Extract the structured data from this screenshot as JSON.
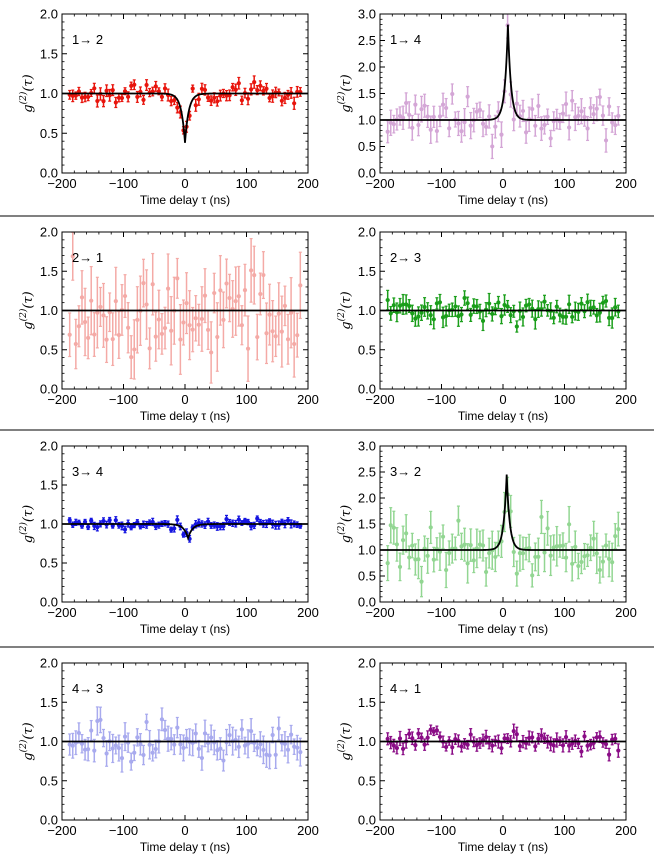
{
  "figure": {
    "ylabel_parts": [
      "g",
      "(2)",
      "(τ)"
    ],
    "xlabel": "Time delay τ (ns)"
  },
  "chart_data": [
    {
      "type": "scatter",
      "panel_label": "1→ 2",
      "color": "#e8140c",
      "ylim": [
        0,
        2
      ],
      "yticks": [
        "0.0",
        "0.5",
        "1.0",
        "1.5",
        "2.0"
      ],
      "xlim": [
        -200,
        200
      ],
      "xticks": [
        "−200",
        "−100",
        "0",
        "100",
        "200"
      ],
      "xlabel": "Time delay τ (ns)",
      "fit": {
        "kind": "dip",
        "baseline": 1.0,
        "amplitude": 0.62,
        "center": 0,
        "width": 6
      },
      "noise": 0.06,
      "errorbar": 0.06,
      "seed": 11
    },
    {
      "type": "scatter",
      "panel_label": "1→ 4",
      "color": "#d4a6d6",
      "ylim": [
        0,
        3
      ],
      "yticks": [
        "0.0",
        "0.5",
        "1.0",
        "1.5",
        "2.0",
        "2.5",
        "3.0"
      ],
      "xlim": [
        -200,
        200
      ],
      "xticks": [
        "−200",
        "−100",
        "0",
        "100",
        "200"
      ],
      "xlabel": "Time delay τ (ns)",
      "fit": {
        "kind": "peak",
        "baseline": 1.0,
        "amplitude": 1.8,
        "center": 8,
        "width": 5
      },
      "noise": 0.2,
      "errorbar": 0.2,
      "seed": 23
    },
    {
      "type": "scatter",
      "panel_label": "2→ 1",
      "color": "#f4aaa6",
      "ylim": [
        0,
        2
      ],
      "yticks": [
        "0.0",
        "0.5",
        "1.0",
        "1.5",
        "2.0"
      ],
      "xlim": [
        -200,
        200
      ],
      "xticks": [
        "−200",
        "−100",
        "0",
        "100",
        "200"
      ],
      "xlabel": "Time delay τ (ns)",
      "fit": {
        "kind": "flat",
        "baseline": 1.0
      },
      "noise": 0.28,
      "errorbar": 0.35,
      "seed": 37
    },
    {
      "type": "scatter",
      "panel_label": "2→ 3",
      "color": "#1a9e1a",
      "ylim": [
        0,
        2
      ],
      "yticks": [
        "0.0",
        "0.5",
        "1.0",
        "1.5",
        "2.0"
      ],
      "xlim": [
        -200,
        200
      ],
      "xticks": [
        "−200",
        "−100",
        "0",
        "100",
        "200"
      ],
      "xlabel": "Time delay τ (ns)",
      "fit": {
        "kind": "flat",
        "baseline": 1.0
      },
      "noise": 0.08,
      "errorbar": 0.1,
      "seed": 41
    },
    {
      "type": "scatter",
      "panel_label": "3→ 4",
      "color": "#1414e0",
      "ylim": [
        0,
        2
      ],
      "yticks": [
        "0.0",
        "0.5",
        "1.0",
        "1.5",
        "2.0"
      ],
      "xlim": [
        -200,
        200
      ],
      "xticks": [
        "−200",
        "−100",
        "0",
        "100",
        "200"
      ],
      "xlabel": "Time delay τ (ns)",
      "fit": {
        "kind": "dip",
        "baseline": 1.0,
        "amplitude": 0.18,
        "center": 5,
        "width": 7
      },
      "noise": 0.035,
      "errorbar": 0.04,
      "seed": 53
    },
    {
      "type": "scatter",
      "panel_label": "3→ 2",
      "color": "#92d692",
      "ylim": [
        0,
        3
      ],
      "yticks": [
        "0.0",
        "0.5",
        "1.0",
        "1.5",
        "2.0",
        "2.5",
        "3.0"
      ],
      "xlim": [
        -200,
        200
      ],
      "xticks": [
        "−200",
        "−100",
        "0",
        "100",
        "200"
      ],
      "xlabel": "Time delay τ (ns)",
      "fit": {
        "kind": "peak",
        "baseline": 1.0,
        "amplitude": 1.45,
        "center": 6,
        "width": 5
      },
      "noise": 0.25,
      "errorbar": 0.3,
      "seed": 67
    },
    {
      "type": "scatter",
      "panel_label": "4→ 3",
      "color": "#a8aaee",
      "ylim": [
        0,
        2
      ],
      "yticks": [
        "0.0",
        "0.5",
        "1.0",
        "1.5",
        "2.0"
      ],
      "xlim": [
        -200,
        200
      ],
      "xticks": [
        "−200",
        "−100",
        "0",
        "100",
        "200"
      ],
      "xlabel": "Time delay τ (ns)",
      "fit": {
        "kind": "flat",
        "baseline": 1.0
      },
      "noise": 0.12,
      "errorbar": 0.14,
      "seed": 71
    },
    {
      "type": "scatter",
      "panel_label": "4→ 1",
      "color": "#8a0c86",
      "ylim": [
        0,
        2
      ],
      "yticks": [
        "0.0",
        "0.5",
        "1.0",
        "1.5",
        "2.0"
      ],
      "xlim": [
        -200,
        200
      ],
      "xticks": [
        "−200",
        "−100",
        "0",
        "100",
        "200"
      ],
      "xlabel": "Time delay τ (ns)",
      "fit": {
        "kind": "flat",
        "baseline": 1.0
      },
      "noise": 0.06,
      "errorbar": 0.07,
      "seed": 83
    }
  ]
}
